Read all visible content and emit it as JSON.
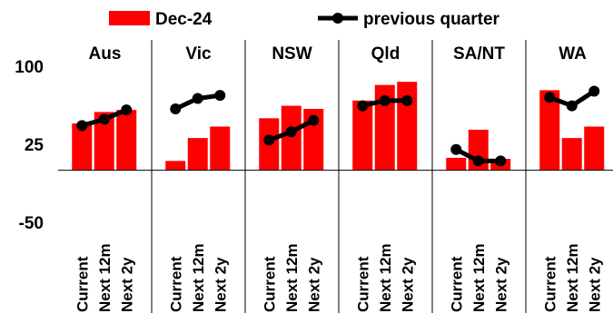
{
  "chart_data": {
    "type": "bar",
    "categories": [
      "Current",
      "Next 12m",
      "Next 2y"
    ],
    "panels": [
      {
        "label": "Aus",
        "bar": [
          45,
          56,
          58
        ],
        "line": [
          43,
          49,
          58
        ]
      },
      {
        "label": "Vic",
        "bar": [
          9,
          31,
          42
        ],
        "line": [
          59,
          69,
          72
        ]
      },
      {
        "label": "NSW",
        "bar": [
          50,
          62,
          59
        ],
        "line": [
          29,
          37,
          48
        ]
      },
      {
        "label": "Qld",
        "bar": [
          67,
          82,
          85
        ],
        "line": [
          62,
          67,
          67
        ]
      },
      {
        "label": "SA/NT",
        "bar": [
          12,
          39,
          11
        ],
        "line": [
          20,
          9,
          9
        ]
      },
      {
        "label": "WA",
        "bar": [
          77,
          31,
          42
        ],
        "line": [
          70,
          62,
          76
        ]
      }
    ],
    "series": [
      {
        "name": "Dec-24",
        "type": "bar",
        "color": "#ff0000"
      },
      {
        "name": "previous quarter",
        "type": "line",
        "color": "#000000"
      }
    ],
    "yticks": [
      "100",
      "25",
      "-50"
    ],
    "ylim": [
      -50,
      100
    ],
    "grid": false,
    "legend_position": "top"
  }
}
